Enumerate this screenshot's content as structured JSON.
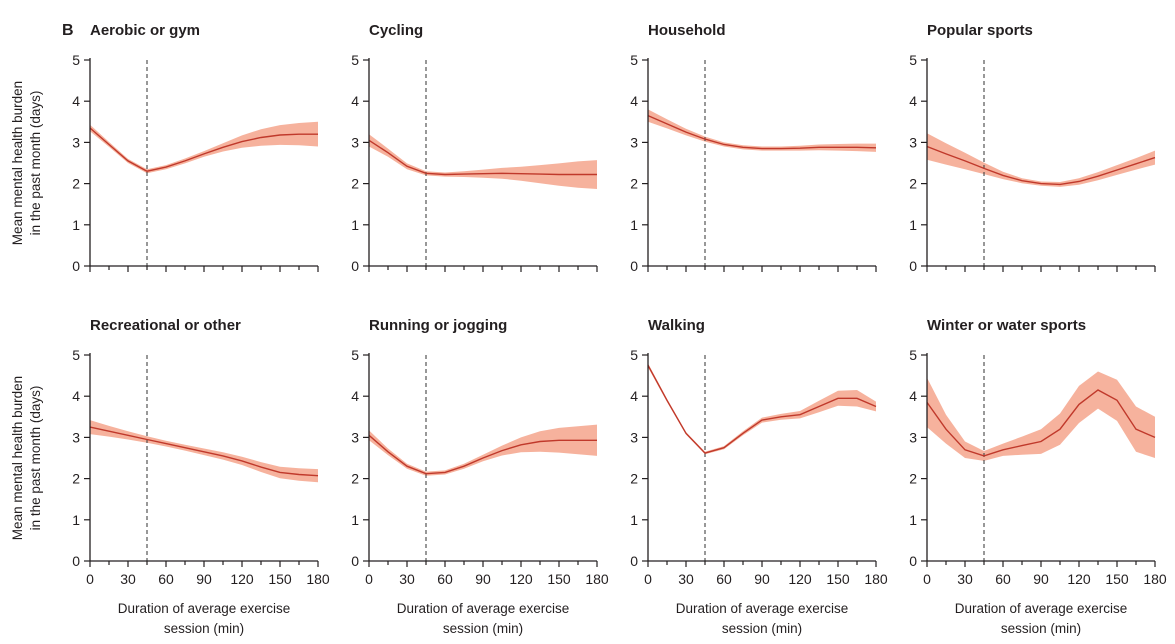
{
  "figure_label": "B",
  "colors": {
    "band": "#f4a48c",
    "line": "#c0392b",
    "axis": "#231f20"
  },
  "chart_data": {
    "type": "line",
    "layout": "grid 2x4 small multiples",
    "ylabel_line1": "Mean mental health burden",
    "ylabel_line2": "in the past month (days)",
    "xlabel_line1": "Duration of average exercise",
    "xlabel_line2": "session (min)",
    "xlim": [
      0,
      180
    ],
    "ylim": [
      0,
      5
    ],
    "x_ticks": [
      0,
      30,
      60,
      90,
      120,
      150,
      180
    ],
    "y_ticks": [
      0,
      1,
      2,
      3,
      4,
      5
    ],
    "reference_line_x": 45,
    "grid": false,
    "x": [
      0,
      15,
      30,
      45,
      60,
      75,
      90,
      105,
      120,
      135,
      150,
      165,
      180
    ],
    "panels": [
      {
        "title": "Aerobic or gym",
        "values": [
          3.35,
          2.95,
          2.55,
          2.3,
          2.4,
          2.55,
          2.72,
          2.88,
          3.02,
          3.12,
          3.18,
          3.2,
          3.2
        ],
        "band": [
          0.08,
          0.06,
          0.05,
          0.05,
          0.05,
          0.06,
          0.07,
          0.1,
          0.15,
          0.2,
          0.24,
          0.27,
          0.3
        ]
      },
      {
        "title": "Cycling",
        "values": [
          3.05,
          2.75,
          2.42,
          2.25,
          2.22,
          2.23,
          2.24,
          2.25,
          2.24,
          2.23,
          2.22,
          2.22,
          2.22
        ],
        "band": [
          0.15,
          0.1,
          0.07,
          0.05,
          0.05,
          0.07,
          0.1,
          0.13,
          0.17,
          0.22,
          0.27,
          0.32,
          0.35
        ]
      },
      {
        "title": "Household",
        "values": [
          3.65,
          3.45,
          3.25,
          3.08,
          2.95,
          2.88,
          2.85,
          2.85,
          2.86,
          2.88,
          2.88,
          2.88,
          2.87
        ],
        "band": [
          0.15,
          0.11,
          0.08,
          0.06,
          0.05,
          0.05,
          0.05,
          0.05,
          0.06,
          0.07,
          0.08,
          0.09,
          0.1
        ]
      },
      {
        "title": "Popular sports",
        "values": [
          2.9,
          2.72,
          2.55,
          2.37,
          2.2,
          2.07,
          2.0,
          1.98,
          2.05,
          2.18,
          2.33,
          2.48,
          2.63
        ],
        "band": [
          0.32,
          0.26,
          0.2,
          0.14,
          0.09,
          0.06,
          0.05,
          0.06,
          0.08,
          0.1,
          0.12,
          0.14,
          0.17
        ]
      },
      {
        "title": "Recreational or other",
        "values": [
          3.25,
          3.15,
          3.05,
          2.95,
          2.85,
          2.75,
          2.65,
          2.55,
          2.43,
          2.28,
          2.15,
          2.1,
          2.07
        ],
        "band": [
          0.17,
          0.13,
          0.1,
          0.08,
          0.07,
          0.07,
          0.08,
          0.09,
          0.1,
          0.12,
          0.14,
          0.15,
          0.16
        ]
      },
      {
        "title": "Running or jogging",
        "values": [
          3.05,
          2.65,
          2.3,
          2.12,
          2.15,
          2.3,
          2.5,
          2.68,
          2.82,
          2.9,
          2.93,
          2.93,
          2.93
        ],
        "band": [
          0.12,
          0.08,
          0.06,
          0.05,
          0.05,
          0.06,
          0.08,
          0.12,
          0.18,
          0.25,
          0.3,
          0.34,
          0.38
        ]
      },
      {
        "title": "Walking",
        "values": [
          4.75,
          3.9,
          3.1,
          2.62,
          2.75,
          3.1,
          3.42,
          3.5,
          3.55,
          3.75,
          3.95,
          3.95,
          3.75
        ],
        "band": [
          0.05,
          0.04,
          0.03,
          0.03,
          0.04,
          0.05,
          0.06,
          0.07,
          0.09,
          0.14,
          0.18,
          0.2,
          0.12
        ]
      },
      {
        "title": "Winter or water sports",
        "values": [
          3.85,
          3.2,
          2.7,
          2.55,
          2.7,
          2.8,
          2.9,
          3.2,
          3.8,
          4.15,
          3.9,
          3.2,
          3.0
        ],
        "band": [
          0.6,
          0.35,
          0.2,
          0.12,
          0.15,
          0.22,
          0.3,
          0.38,
          0.45,
          0.45,
          0.5,
          0.55,
          0.5
        ]
      }
    ]
  }
}
